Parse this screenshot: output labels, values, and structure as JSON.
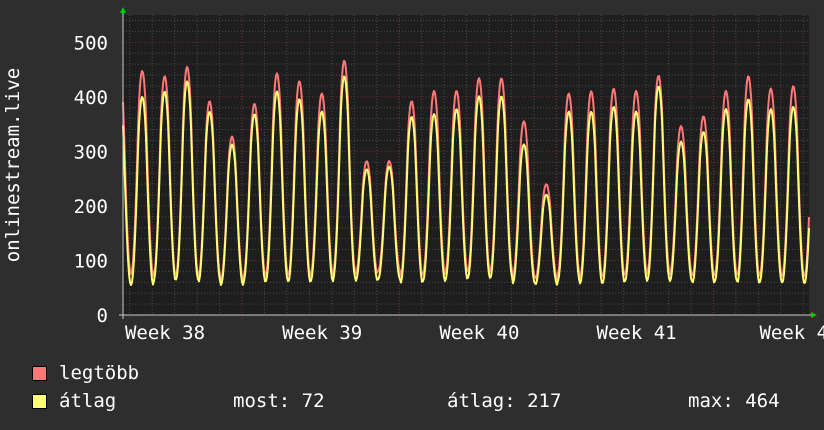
{
  "chart_data": {
    "type": "line",
    "ylabel": "onlinestream.live",
    "ylim": [
      0,
      550
    ],
    "yticks": [
      0,
      100,
      200,
      300,
      400,
      500
    ],
    "xtick_labels": [
      "Week 38",
      "Week 39",
      "Week 40",
      "Week 41",
      "Week 4"
    ],
    "grid": true,
    "legend_position": "bottom",
    "series": [
      {
        "name": "legtöbb",
        "color": "#ff7777",
        "daily_min": [
          75,
          70,
          75,
          70,
          65,
          70,
          75,
          70,
          75,
          80,
          75,
          80,
          70,
          75,
          80,
          80,
          80,
          70,
          65,
          75,
          70,
          70,
          75,
          80,
          75,
          70,
          75,
          70,
          72,
          70
        ],
        "daily_peak": [
          480,
          470,
          488,
          420,
          350,
          415,
          475,
          460,
          435,
          500,
          300,
          300,
          420,
          440,
          440,
          465,
          465,
          380,
          255,
          435,
          440,
          445,
          440,
          470,
          370,
          390,
          440,
          470,
          445,
          450
        ]
      },
      {
        "name": "átlag",
        "color": "#ffff77",
        "daily_min": [
          55,
          62,
          65,
          60,
          55,
          60,
          62,
          60,
          62,
          68,
          62,
          65,
          58,
          62,
          65,
          68,
          68,
          58,
          55,
          62,
          58,
          58,
          62,
          65,
          62,
          58,
          62,
          58,
          60,
          58
        ],
        "daily_peak": [
          430,
          440,
          460,
          400,
          335,
          395,
          440,
          425,
          400,
          470,
          285,
          290,
          390,
          395,
          405,
          430,
          430,
          335,
          235,
          400,
          400,
          410,
          400,
          450,
          340,
          360,
          405,
          425,
          405,
          410
        ]
      }
    ],
    "stats": {
      "most_label": "most:",
      "most": "72",
      "atlag_label": "átlag:",
      "atlag": "217",
      "max_label": "max:",
      "max": "464"
    }
  }
}
